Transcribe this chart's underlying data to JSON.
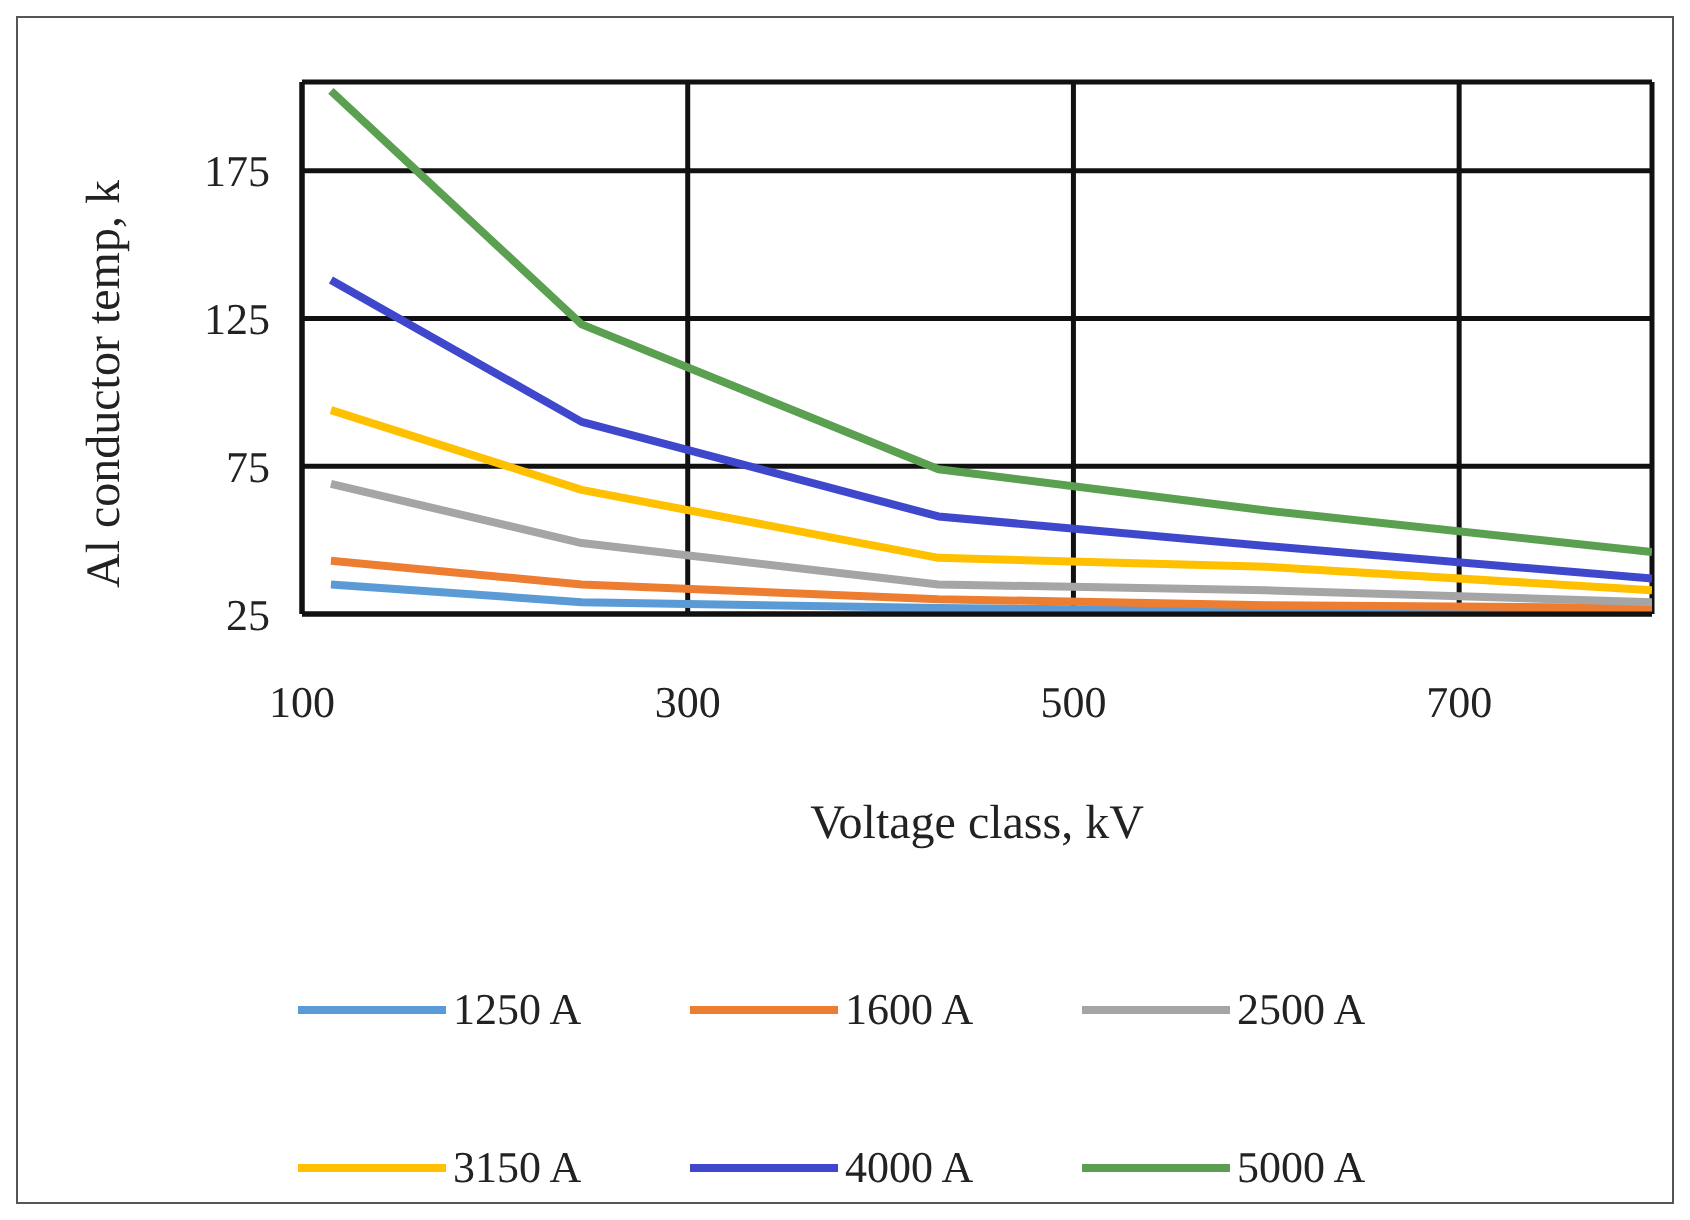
{
  "chart_data": {
    "type": "line",
    "xlabel": "Voltage class, kV",
    "ylabel": "Al conductor temp, k",
    "x": [
      115,
      245,
      430,
      600,
      800
    ],
    "series": [
      {
        "name": "1250 A",
        "color": "#5b9bd5",
        "values": [
          35,
          29,
          27,
          26,
          26
        ]
      },
      {
        "name": "1600 A",
        "color": "#ed7d31",
        "values": [
          43,
          35,
          30,
          28,
          27
        ]
      },
      {
        "name": "2500 A",
        "color": "#a5a5a5",
        "values": [
          69,
          49,
          35,
          33,
          29
        ]
      },
      {
        "name": "3150 A",
        "color": "#ffc000",
        "values": [
          94,
          67,
          44,
          41,
          33
        ]
      },
      {
        "name": "4000 A",
        "color": "#3f48cc",
        "values": [
          138,
          90,
          58,
          48,
          37
        ]
      },
      {
        "name": "5000 A",
        "color": "#5aa050",
        "values": [
          202,
          123,
          74,
          60,
          46
        ]
      }
    ],
    "xlim": [
      100,
      800
    ],
    "xticks": [
      100,
      300,
      500,
      700
    ],
    "ylim": [
      25,
      205
    ],
    "yticks": [
      25,
      75,
      125,
      175
    ],
    "grid": true,
    "legend": "bottom",
    "marker": "none",
    "line_style": "solid"
  }
}
